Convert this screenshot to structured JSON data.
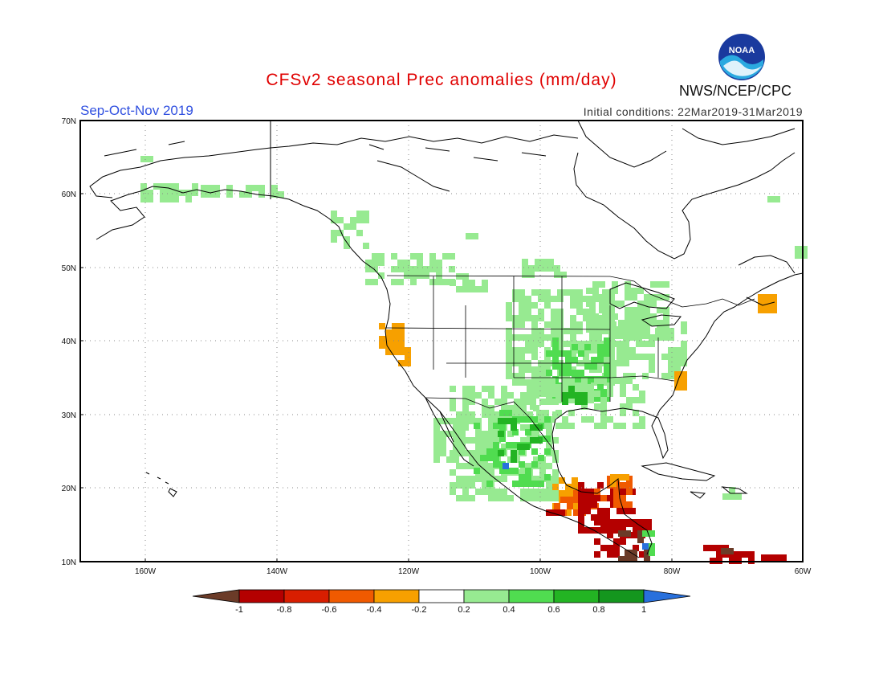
{
  "title": "CFSv2 seasonal Prec anomalies (mm/day)",
  "season": "Sep-Oct-Nov 2019",
  "initial_conditions": "Initial conditions: 22Mar2019-31Mar2019",
  "agency": "NWS/NCEP/CPC",
  "logo_text": "NOAA",
  "lat_ticks": [
    "70N",
    "60N",
    "50N",
    "40N",
    "30N",
    "20N",
    "10N"
  ],
  "lon_ticks": [
    "160W",
    "140W",
    "120W",
    "100W",
    "80W",
    "60W"
  ],
  "colorbar": {
    "labels": [
      "-1",
      "-0.8",
      "-0.6",
      "-0.4",
      "-0.2",
      "0.2",
      "0.4",
      "0.6",
      "0.8",
      "1"
    ],
    "colors": [
      "#6b3b28",
      "#b40000",
      "#d81e00",
      "#f05a00",
      "#f7a000",
      "#ffffff",
      "#97ea91",
      "#50dc50",
      "#23b423",
      "#14961e",
      "#2870dc"
    ]
  },
  "colors": {
    "wet_light": "#97ea91",
    "wet_mid": "#50dc50",
    "wet_dark": "#23b423",
    "dry_light": "#f7a000",
    "dry_mid": "#f05a00",
    "dry_dark": "#b40000",
    "dry_extreme": "#6b3b28",
    "wet_extreme": "#2870dc"
  }
}
